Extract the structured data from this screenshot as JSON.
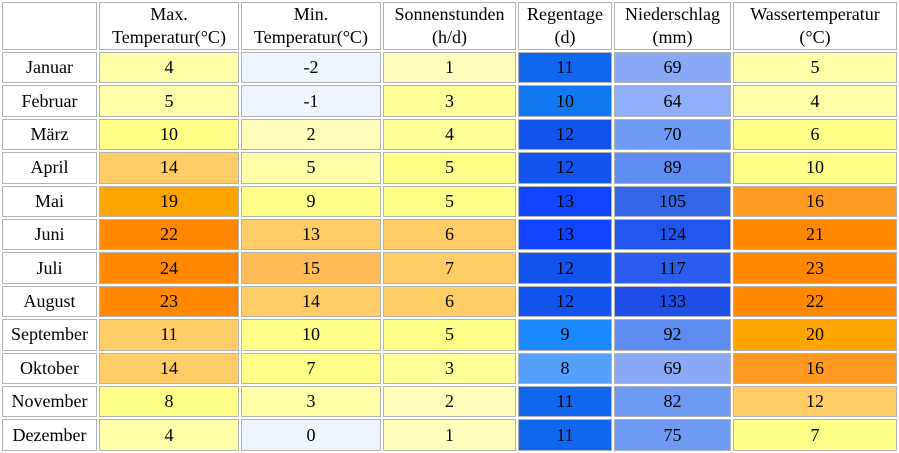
{
  "columns": [
    {
      "line1": "Max.",
      "line2": "Temperatur(°C)"
    },
    {
      "line1": "Min.",
      "line2": "Temperatur(°C)"
    },
    {
      "line1": "Sonnenstunden",
      "line2": "(h/d)"
    },
    {
      "line1": "Regentage",
      "line2": "(d)"
    },
    {
      "line1": "Niederschlag",
      "line2": "(mm)"
    },
    {
      "line1": "Wassertemperatur",
      "line2": "(°C)"
    }
  ],
  "rows": [
    {
      "month": "Januar",
      "values": [
        "4",
        "-2",
        "1",
        "11",
        "69",
        "5"
      ],
      "colors": [
        "#ffffaa",
        "#eef5ff",
        "#ffffbb",
        "#1166ee",
        "#8aaaf8",
        "#ffffaa"
      ]
    },
    {
      "month": "Februar",
      "values": [
        "5",
        "-1",
        "3",
        "10",
        "64",
        "4"
      ],
      "colors": [
        "#ffffaa",
        "#eef5ff",
        "#ffff99",
        "#1177ee",
        "#8fb0f8",
        "#ffffaa"
      ]
    },
    {
      "month": "März",
      "values": [
        "10",
        "2",
        "4",
        "12",
        "70",
        "6"
      ],
      "colors": [
        "#ffff88",
        "#ffffbb",
        "#ffff99",
        "#1155ee",
        "#6f9af4",
        "#ffff88"
      ]
    },
    {
      "month": "April",
      "values": [
        "14",
        "5",
        "5",
        "12",
        "89",
        "10"
      ],
      "colors": [
        "#ffcc66",
        "#ffffaa",
        "#ffff88",
        "#1155ee",
        "#5e8cf0",
        "#ffff88"
      ]
    },
    {
      "month": "Mai",
      "values": [
        "19",
        "9",
        "5",
        "13",
        "105",
        "16"
      ],
      "colors": [
        "#ffa500",
        "#ffff88",
        "#ffff88",
        "#1144ff",
        "#3366e8",
        "#ff9922"
      ]
    },
    {
      "month": "Juni",
      "values": [
        "22",
        "13",
        "6",
        "13",
        "124",
        "21"
      ],
      "colors": [
        "#ff8800",
        "#ffcc66",
        "#ffcc66",
        "#1144ff",
        "#2255ee",
        "#ff8800"
      ]
    },
    {
      "month": "Juli",
      "values": [
        "24",
        "15",
        "7",
        "12",
        "117",
        "23"
      ],
      "colors": [
        "#ff8800",
        "#ffbb55",
        "#ffcc66",
        "#1155ee",
        "#2b5ded",
        "#ff8800"
      ]
    },
    {
      "month": "August",
      "values": [
        "23",
        "14",
        "6",
        "12",
        "133",
        "22"
      ],
      "colors": [
        "#ff8800",
        "#ffcc66",
        "#ffcc66",
        "#1155ee",
        "#1d4fe8",
        "#ff8800"
      ]
    },
    {
      "month": "September",
      "values": [
        "11",
        "10",
        "5",
        "9",
        "92",
        "20"
      ],
      "colors": [
        "#ffcc66",
        "#ffff88",
        "#ffff88",
        "#1a88ff",
        "#5e8cf0",
        "#ffa500"
      ]
    },
    {
      "month": "Oktober",
      "values": [
        "14",
        "7",
        "3",
        "8",
        "69",
        "16"
      ],
      "colors": [
        "#ffcc66",
        "#ffff88",
        "#ffff99",
        "#55a0ff",
        "#8aaaf8",
        "#ff9922"
      ]
    },
    {
      "month": "November",
      "values": [
        "8",
        "3",
        "2",
        "11",
        "82",
        "12"
      ],
      "colors": [
        "#ffff88",
        "#ffffaa",
        "#ffffbb",
        "#1166ee",
        "#6f9af4",
        "#ffcc66"
      ]
    },
    {
      "month": "Dezember",
      "values": [
        "4",
        "0",
        "1",
        "11",
        "75",
        "7"
      ],
      "colors": [
        "#ffffaa",
        "#eef5ff",
        "#ffffbb",
        "#1166ee",
        "#6f9af4",
        "#ffff88"
      ]
    }
  ]
}
